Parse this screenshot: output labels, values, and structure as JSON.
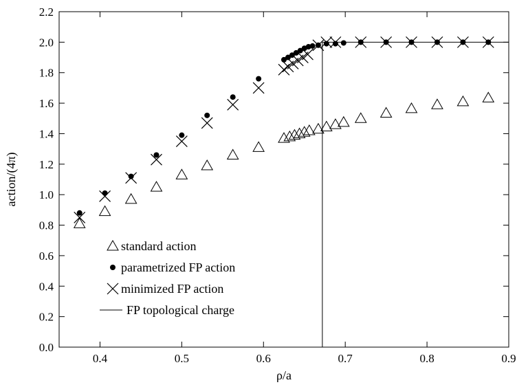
{
  "chart_data": {
    "type": "scatter",
    "title": "",
    "xlabel": "ρ/a",
    "ylabel": "action/(4π)",
    "xlim": [
      0.35,
      0.9
    ],
    "ylim": [
      0.0,
      2.2
    ],
    "xticks": [
      "0.4",
      "0.5",
      "0.6",
      "0.7",
      "0.8",
      "0.9"
    ],
    "yticks": [
      "0.0",
      "0.2",
      "0.4",
      "0.6",
      "0.8",
      "1.0",
      "1.2",
      "1.4",
      "1.6",
      "1.8",
      "2.0",
      "2.2"
    ],
    "xtick_values": [
      0.4,
      0.5,
      0.6,
      0.7,
      0.8,
      0.9
    ],
    "ytick_values": [
      0.0,
      0.2,
      0.4,
      0.6,
      0.8,
      1.0,
      1.2,
      1.4,
      1.6,
      1.8,
      2.0,
      2.2
    ],
    "grid": false,
    "legend_position": "bottom-left",
    "series": [
      {
        "name": "standard action",
        "marker": "triangle",
        "x": [
          0.375,
          0.406,
          0.438,
          0.469,
          0.5,
          0.531,
          0.5625,
          0.594,
          0.625,
          0.632,
          0.638,
          0.644,
          0.65,
          0.656,
          0.667,
          0.677,
          0.688,
          0.698,
          0.719,
          0.75,
          0.781,
          0.8125,
          0.844,
          0.875
        ],
        "y": [
          0.81,
          0.89,
          0.97,
          1.05,
          1.13,
          1.19,
          1.26,
          1.31,
          1.37,
          1.38,
          1.39,
          1.4,
          1.41,
          1.42,
          1.43,
          1.445,
          1.46,
          1.475,
          1.5,
          1.535,
          1.565,
          1.59,
          1.61,
          1.635
        ]
      },
      {
        "name": "parametrized FP action",
        "marker": "dot",
        "x": [
          0.375,
          0.406,
          0.438,
          0.469,
          0.5,
          0.531,
          0.5625,
          0.594,
          0.625,
          0.63,
          0.635,
          0.64,
          0.645,
          0.65,
          0.655,
          0.66,
          0.667,
          0.677,
          0.688,
          0.698,
          0.719,
          0.75,
          0.781,
          0.8125,
          0.844,
          0.875
        ],
        "y": [
          0.88,
          1.01,
          1.12,
          1.26,
          1.39,
          1.52,
          1.64,
          1.76,
          1.885,
          1.9,
          1.915,
          1.93,
          1.945,
          1.96,
          1.97,
          1.975,
          1.98,
          1.99,
          1.99,
          1.995,
          2.0,
          2.0,
          2.0,
          2.0,
          2.0,
          2.0
        ]
      },
      {
        "name": "minimized FP action",
        "marker": "cross",
        "x": [
          0.375,
          0.406,
          0.438,
          0.469,
          0.5,
          0.531,
          0.5625,
          0.594,
          0.625,
          0.63,
          0.636,
          0.642,
          0.648,
          0.654,
          0.667,
          0.677,
          0.688,
          0.719,
          0.75,
          0.781,
          0.8125,
          0.844,
          0.875
        ],
        "y": [
          0.85,
          0.99,
          1.11,
          1.23,
          1.35,
          1.47,
          1.59,
          1.7,
          1.82,
          1.84,
          1.86,
          1.88,
          1.9,
          1.92,
          1.98,
          2.0,
          2.0,
          2.0,
          2.0,
          2.0,
          2.0,
          2.0,
          2.0
        ]
      },
      {
        "name": "FP topological charge",
        "marker": "line",
        "x": [
          0.672,
          0.672,
          0.9
        ],
        "y": [
          0.0,
          2.0,
          2.0
        ]
      }
    ]
  }
}
